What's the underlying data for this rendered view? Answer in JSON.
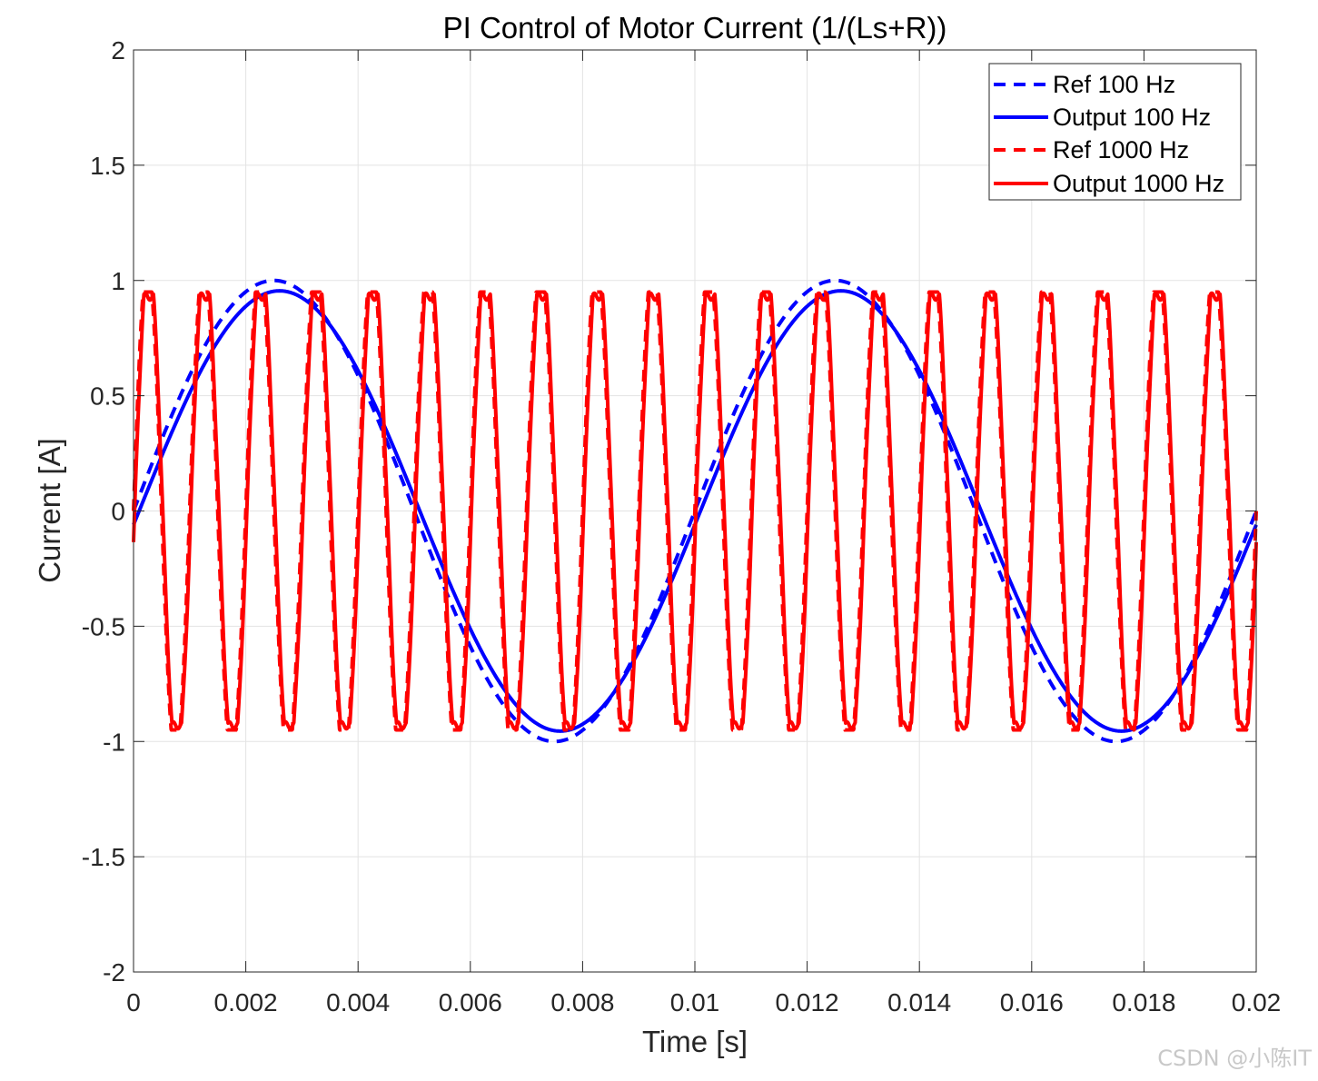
{
  "chart_data": {
    "type": "line",
    "title": "PI Control of Motor Current (1/(Ls+R))",
    "xlabel": "Time [s]",
    "ylabel": "Current [A]",
    "xlim": [
      0,
      0.02
    ],
    "ylim": [
      -2,
      2
    ],
    "grid": true,
    "x_ticks": [
      "0",
      "0.002",
      "0.004",
      "0.006",
      "0.008",
      "0.01",
      "0.012",
      "0.014",
      "0.016",
      "0.018",
      "0.02"
    ],
    "x_tick_values": [
      0,
      0.002,
      0.004,
      0.006,
      0.008,
      0.01,
      0.012,
      0.014,
      0.016,
      0.018,
      0.02
    ],
    "y_ticks": [
      "2",
      "1.5",
      "1",
      "0.5",
      "0",
      "-0.5",
      "-1",
      "-1.5",
      "-2"
    ],
    "y_tick_values": [
      2,
      1.5,
      1,
      0.5,
      0,
      -0.5,
      -1,
      -1.5,
      -2
    ],
    "legend_position": "top-right",
    "series": [
      {
        "name": "Ref 100 Hz",
        "color": "#0000ff",
        "style": "dashed",
        "frequency_hz": 100,
        "amplitude": 1.0,
        "phase_lag_s": 0
      },
      {
        "name": "Output 100 Hz",
        "color": "#0000ff",
        "style": "solid",
        "frequency_hz": 100,
        "amplitude": 0.955,
        "phase_lag_s": 0.0001
      },
      {
        "name": "Ref 1000 Hz",
        "color": "#ff0000",
        "style": "dashed",
        "frequency_hz": 1000,
        "amplitude": 0.95,
        "shape": "clipped-sine"
      },
      {
        "name": "Output 1000 Hz",
        "color": "#ff0000",
        "style": "solid",
        "frequency_hz": 1000,
        "amplitude": 0.93,
        "shape": "clipped-sine"
      }
    ]
  },
  "watermark": "CSDN @小陈IT"
}
